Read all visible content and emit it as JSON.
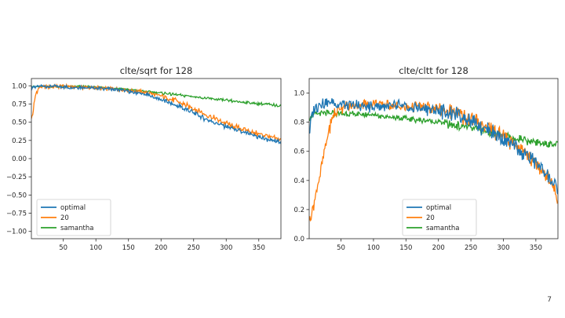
{
  "page": {
    "number": "7"
  },
  "colors": {
    "optimal": "#1f77b4",
    "20": "#ff7f0e",
    "samantha": "#2ca02c"
  },
  "chart_data": [
    {
      "type": "line",
      "title": "clte/sqrt for 128",
      "xlabel": "",
      "ylabel": "",
      "xlim": [
        1,
        384
      ],
      "ylim": [
        -1.1,
        1.1
      ],
      "xticks": [
        50,
        100,
        150,
        200,
        250,
        300,
        350
      ],
      "yticks": [
        1.0,
        0.75,
        0.5,
        0.25,
        0.0,
        -0.25,
        -0.5,
        -0.75,
        -1.0
      ],
      "ytick_labels": [
        "1.00",
        "0.75",
        "0.50",
        "0.25",
        "0.00",
        "−0.25",
        "−0.50",
        "−0.75",
        "−1.00"
      ],
      "grid": false,
      "legend": "lower-left",
      "series": [
        {
          "name": "optimal",
          "x": [
            1,
            5,
            10,
            20,
            40,
            60,
            80,
            100,
            120,
            140,
            160,
            180,
            200,
            220,
            240,
            260,
            280,
            300,
            320,
            340,
            360,
            370,
            380,
            384
          ],
          "y": [
            0.98,
            0.99,
            0.99,
            0.99,
            0.99,
            0.98,
            0.98,
            0.97,
            0.96,
            0.94,
            0.91,
            0.87,
            0.81,
            0.74,
            0.67,
            0.58,
            0.5,
            0.44,
            0.38,
            0.32,
            0.27,
            0.25,
            0.23,
            0.22
          ]
        },
        {
          "name": "20",
          "x": [
            1,
            3,
            5,
            8,
            12,
            15,
            20,
            40,
            60,
            80,
            100,
            120,
            140,
            160,
            180,
            200,
            220,
            240,
            260,
            280,
            300,
            320,
            340,
            360,
            370,
            380,
            384
          ],
          "y": [
            0.55,
            0.6,
            0.75,
            0.9,
            0.96,
            0.98,
            0.99,
            0.99,
            0.99,
            0.98,
            0.97,
            0.96,
            0.95,
            0.93,
            0.9,
            0.86,
            0.8,
            0.73,
            0.64,
            0.56,
            0.48,
            0.42,
            0.36,
            0.32,
            0.29,
            0.27,
            0.26
          ]
        },
        {
          "name": "samantha",
          "x": [
            1,
            20,
            40,
            60,
            80,
            100,
            120,
            140,
            160,
            180,
            200,
            220,
            240,
            260,
            280,
            300,
            320,
            340,
            360,
            380,
            384
          ],
          "y": [
            0.99,
            0.99,
            0.99,
            0.99,
            0.99,
            0.98,
            0.97,
            0.96,
            0.94,
            0.92,
            0.9,
            0.88,
            0.86,
            0.84,
            0.82,
            0.8,
            0.78,
            0.76,
            0.75,
            0.73,
            0.73
          ]
        }
      ]
    },
    {
      "type": "line",
      "title": "clte/cltt for 128",
      "xlabel": "",
      "ylabel": "",
      "xlim": [
        1,
        384
      ],
      "ylim": [
        0.0,
        1.1
      ],
      "xticks": [
        50,
        100,
        150,
        200,
        250,
        300,
        350
      ],
      "yticks": [
        0.0,
        0.2,
        0.4,
        0.6,
        0.8,
        1.0
      ],
      "ytick_labels": [
        "0.0",
        "0.2",
        "0.4",
        "0.6",
        "0.8",
        "1.0"
      ],
      "grid": false,
      "legend": "lower-center",
      "series": [
        {
          "name": "optimal",
          "x": [
            1,
            5,
            10,
            20,
            40,
            60,
            80,
            100,
            120,
            140,
            160,
            180,
            200,
            220,
            240,
            260,
            280,
            300,
            320,
            340,
            360,
            370,
            380,
            384
          ],
          "y": [
            0.72,
            0.85,
            0.9,
            0.93,
            0.93,
            0.92,
            0.91,
            0.91,
            0.91,
            0.91,
            0.9,
            0.89,
            0.88,
            0.86,
            0.83,
            0.79,
            0.74,
            0.68,
            0.62,
            0.56,
            0.48,
            0.43,
            0.35,
            0.3
          ]
        },
        {
          "name": "20",
          "x": [
            1,
            5,
            10,
            15,
            20,
            25,
            30,
            35,
            40,
            50,
            60,
            80,
            100,
            120,
            140,
            160,
            180,
            200,
            220,
            240,
            260,
            280,
            300,
            320,
            340,
            360,
            370,
            380,
            384
          ],
          "y": [
            0.12,
            0.18,
            0.28,
            0.38,
            0.5,
            0.62,
            0.72,
            0.8,
            0.86,
            0.9,
            0.91,
            0.92,
            0.92,
            0.92,
            0.91,
            0.91,
            0.9,
            0.89,
            0.87,
            0.84,
            0.8,
            0.76,
            0.7,
            0.64,
            0.57,
            0.48,
            0.42,
            0.32,
            0.25
          ]
        },
        {
          "name": "samantha",
          "x": [
            1,
            5,
            10,
            20,
            30,
            40,
            60,
            80,
            100,
            120,
            140,
            160,
            180,
            200,
            220,
            240,
            260,
            280,
            300,
            320,
            340,
            360,
            380,
            384
          ],
          "y": [
            0.82,
            0.85,
            0.86,
            0.86,
            0.86,
            0.86,
            0.86,
            0.85,
            0.85,
            0.84,
            0.83,
            0.82,
            0.81,
            0.8,
            0.78,
            0.77,
            0.75,
            0.73,
            0.71,
            0.69,
            0.67,
            0.66,
            0.65,
            0.65
          ]
        }
      ]
    }
  ]
}
